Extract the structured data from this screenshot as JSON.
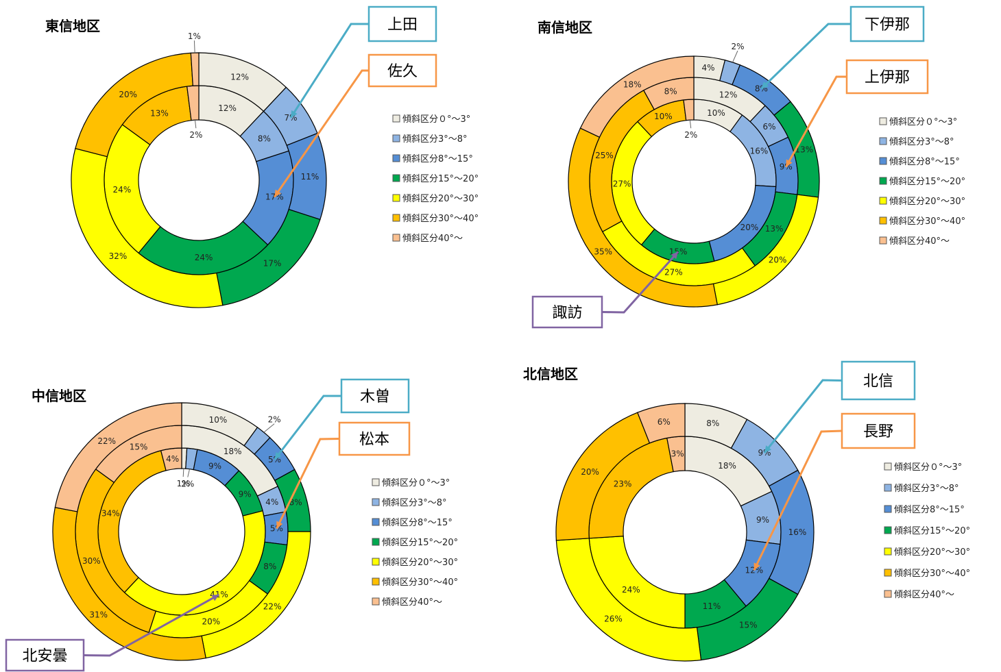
{
  "colors": {
    "0-3": "#eeece1",
    "3-8": "#8eb4e3",
    "8-15": "#558ed5",
    "15-20": "#00a84f",
    "20-30": "#ffff00",
    "30-40": "#ffc000",
    "40+": "#fac090",
    "call_blue": "#4bacc6",
    "call_orange": "#f79646",
    "call_purple": "#8064a2"
  },
  "chart_data": [
    {
      "type": "donut",
      "title": "東信地区",
      "categories": [
        "傾斜区分０°～3°",
        "傾斜区分3°～8°",
        "傾斜区分8°～15°",
        "傾斜区分15°～20°",
        "傾斜区分20°～30°",
        "傾斜区分30°～40°",
        "傾斜区分40°～"
      ],
      "series": [
        {
          "name": "佐久",
          "ring": "inner",
          "values": [
            12,
            8,
            17,
            24,
            24,
            13,
            2
          ]
        },
        {
          "name": "上田",
          "ring": "outer",
          "values": [
            12,
            7,
            11,
            17,
            32,
            20,
            1
          ]
        }
      ],
      "callouts": [
        {
          "text": "上田",
          "color": "call_blue",
          "ring": "outer"
        },
        {
          "text": "佐久",
          "color": "call_orange",
          "ring": "inner"
        }
      ],
      "legend_position": "right"
    },
    {
      "type": "donut",
      "title": "南信地区",
      "categories": [
        "傾斜区分０°～3°",
        "傾斜区分3°～8°",
        "傾斜区分8°～15°",
        "傾斜区分15°～20°",
        "傾斜区分20°～30°",
        "傾斜区分30°～40°",
        "傾斜区分40°～"
      ],
      "series": [
        {
          "name": "諏訪",
          "ring": "inner",
          "values": [
            10,
            16,
            20,
            15,
            27,
            10,
            2
          ]
        },
        {
          "name": "上伊那",
          "ring": "middle",
          "values": [
            12,
            6,
            9,
            13,
            27,
            25,
            8
          ]
        },
        {
          "name": "下伊那",
          "ring": "outer",
          "values": [
            4,
            2,
            8,
            13,
            20,
            35,
            18
          ]
        }
      ],
      "callouts": [
        {
          "text": "下伊那",
          "color": "call_blue",
          "ring": "outer"
        },
        {
          "text": "上伊那",
          "color": "call_orange",
          "ring": "middle"
        },
        {
          "text": "諏訪",
          "color": "call_purple",
          "ring": "inner"
        }
      ],
      "legend_position": "right"
    },
    {
      "type": "donut",
      "title": "中信地区",
      "categories": [
        "傾斜区分０°～3°",
        "傾斜区分3°～8°",
        "傾斜区分8°～15°",
        "傾斜区分15°～20°",
        "傾斜区分20°～30°",
        "傾斜区分30°～40°",
        "傾斜区分40°～"
      ],
      "series": [
        {
          "name": "北安曇",
          "ring": "inner",
          "values": [
            1,
            2,
            9,
            9,
            41,
            34,
            4
          ]
        },
        {
          "name": "松本",
          "ring": "middle",
          "values": [
            18,
            4,
            5,
            8,
            20,
            30,
            15
          ]
        },
        {
          "name": "木曽",
          "ring": "outer",
          "values": [
            10,
            2,
            5,
            8,
            22,
            31,
            22
          ]
        }
      ],
      "callouts": [
        {
          "text": "木曽",
          "color": "call_blue",
          "ring": "outer"
        },
        {
          "text": "松本",
          "color": "call_orange",
          "ring": "middle"
        },
        {
          "text": "北安曇",
          "color": "call_purple",
          "ring": "inner"
        }
      ],
      "legend_position": "right"
    },
    {
      "type": "donut",
      "title": "北信地区",
      "categories": [
        "傾斜区分０°～3°",
        "傾斜区分3°～8°",
        "傾斜区分8°～15°",
        "傾斜区分15°～20°",
        "傾斜区分20°～30°",
        "傾斜区分30°～40°",
        "傾斜区分40°～"
      ],
      "series": [
        {
          "name": "長野",
          "ring": "inner",
          "values": [
            18,
            9,
            12,
            11,
            24,
            23,
            3
          ]
        },
        {
          "name": "北信",
          "ring": "outer",
          "values": [
            8,
            9,
            16,
            15,
            26,
            20,
            6
          ]
        }
      ],
      "callouts": [
        {
          "text": "北信",
          "color": "call_blue",
          "ring": "outer"
        },
        {
          "text": "長野",
          "color": "call_orange",
          "ring": "inner"
        }
      ],
      "legend_position": "right"
    }
  ]
}
